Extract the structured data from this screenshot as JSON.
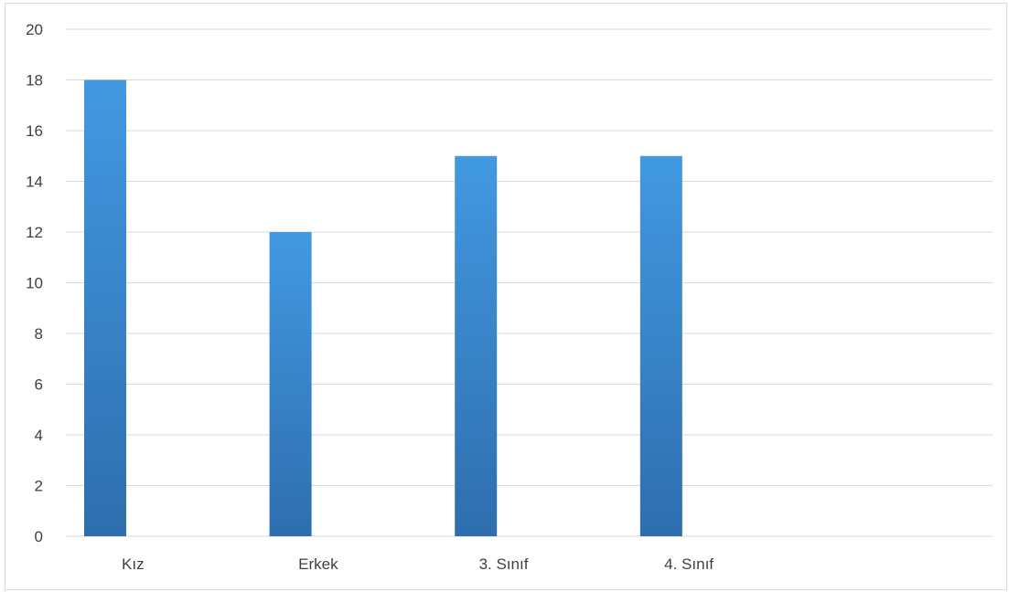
{
  "chart_data": {
    "type": "bar",
    "categories": [
      "Kız",
      "Erkek",
      "3. Sınıf",
      "4.  Sınıf",
      ""
    ],
    "values": [
      18,
      12,
      15,
      15,
      null
    ],
    "ylim": [
      0,
      20
    ],
    "y_ticks": [
      0,
      2,
      4,
      6,
      8,
      10,
      12,
      14,
      16,
      18,
      20
    ],
    "grid": true,
    "bar_color_top": "#4299E1",
    "bar_color_bottom": "#2E6EAE",
    "grid_color": "#D9D9D9",
    "title": "",
    "xlabel": "",
    "ylabel": ""
  }
}
